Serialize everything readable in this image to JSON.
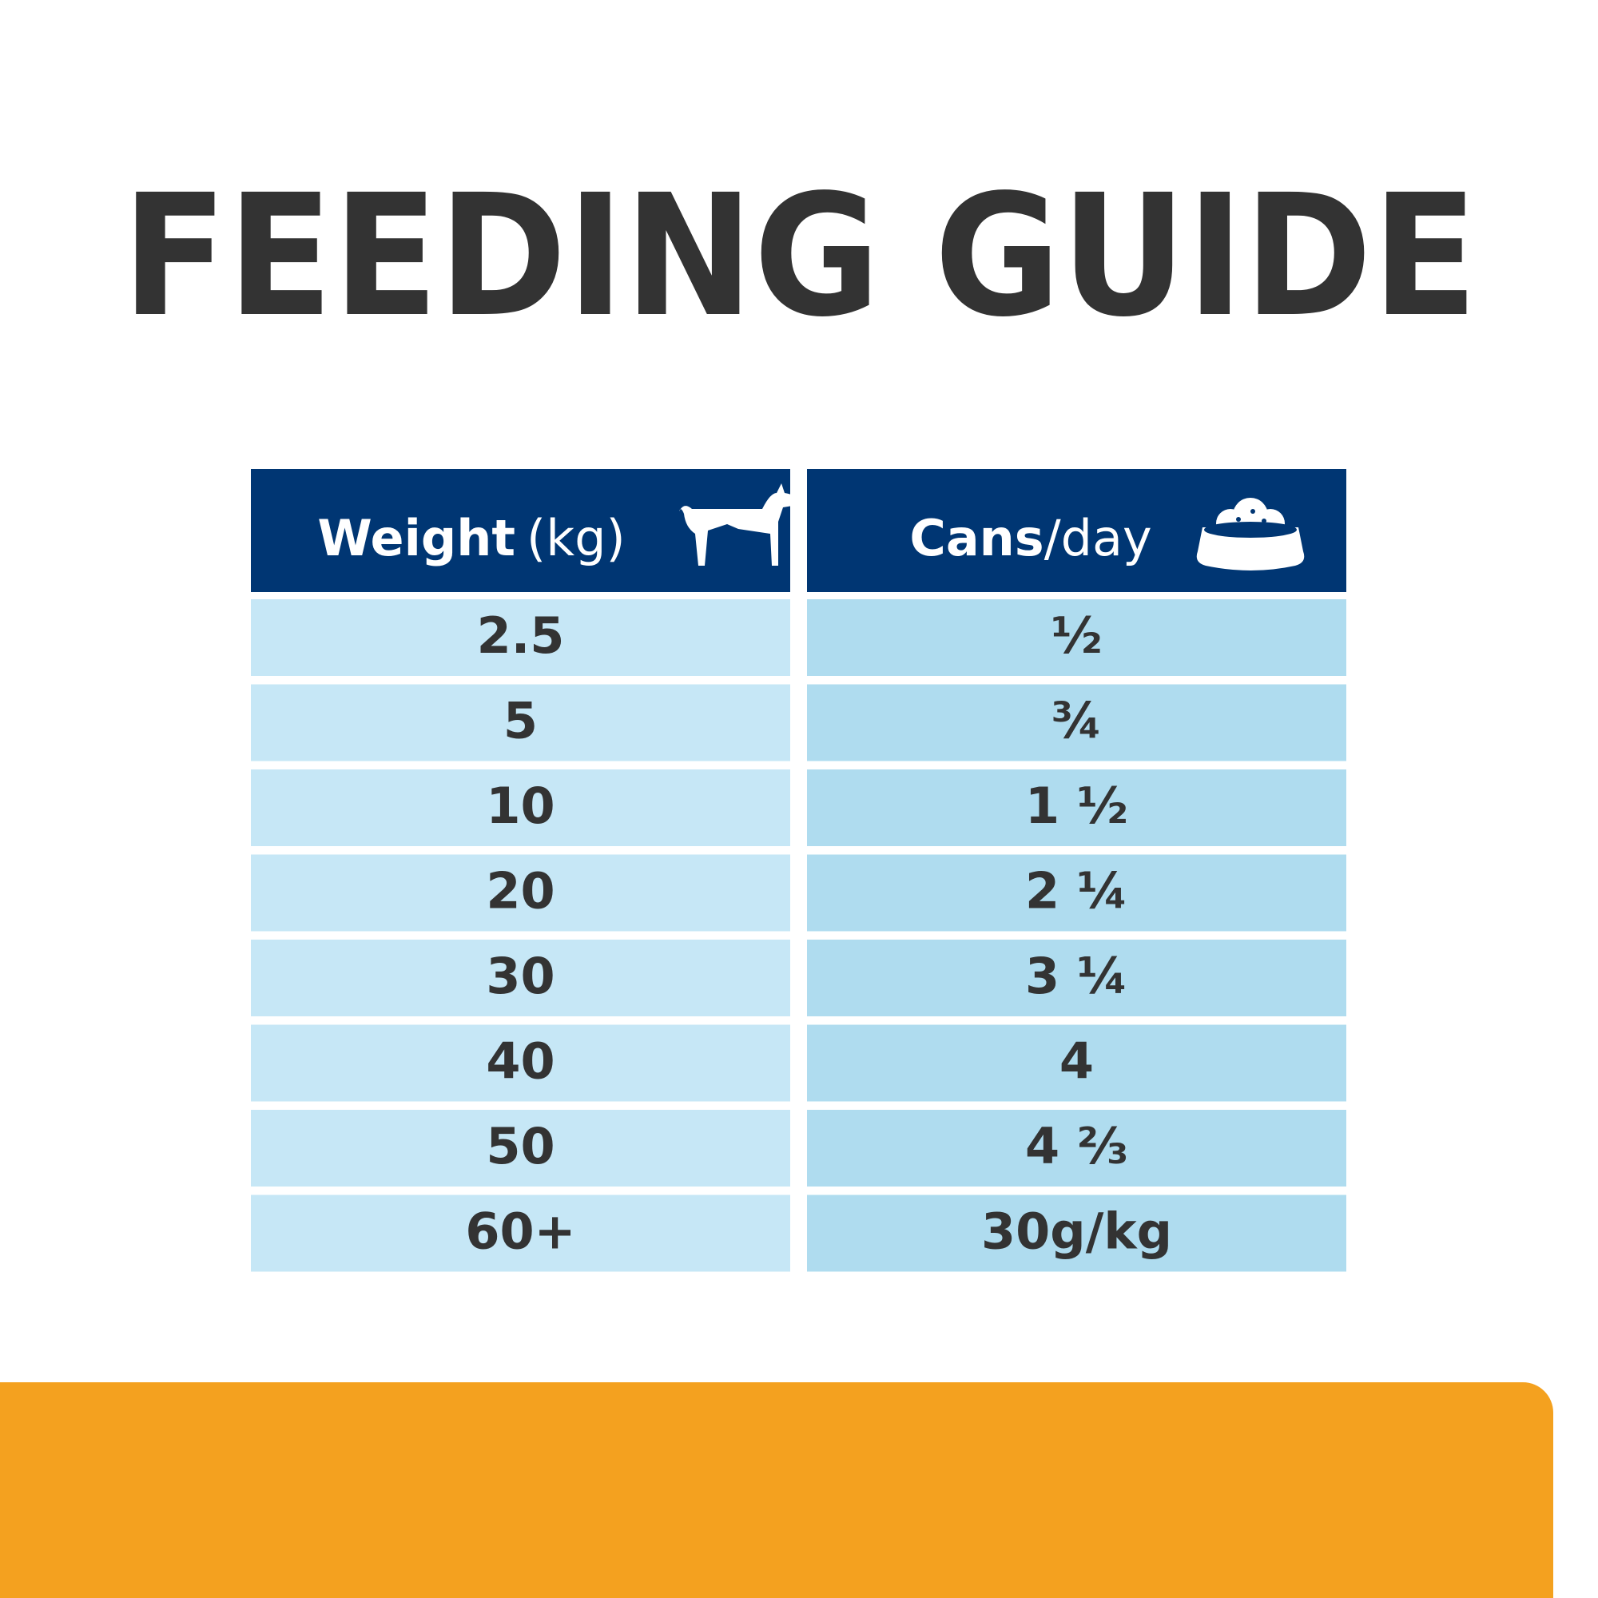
{
  "title": "FEEDING GUIDE",
  "table": {
    "headers": [
      {
        "bold": "Weight",
        "light": "(kg)"
      },
      {
        "bold": "Cans",
        "light": "/day"
      }
    ],
    "rows": [
      [
        "2.5",
        "½"
      ],
      [
        "5",
        "¾"
      ],
      [
        "10",
        "1 ½"
      ],
      [
        "20",
        "2 ¼"
      ],
      [
        "30",
        "3 ¼"
      ],
      [
        "40",
        "4"
      ],
      [
        "50",
        "4 ⅔"
      ],
      [
        "60+",
        "30g/kg"
      ]
    ]
  }
}
